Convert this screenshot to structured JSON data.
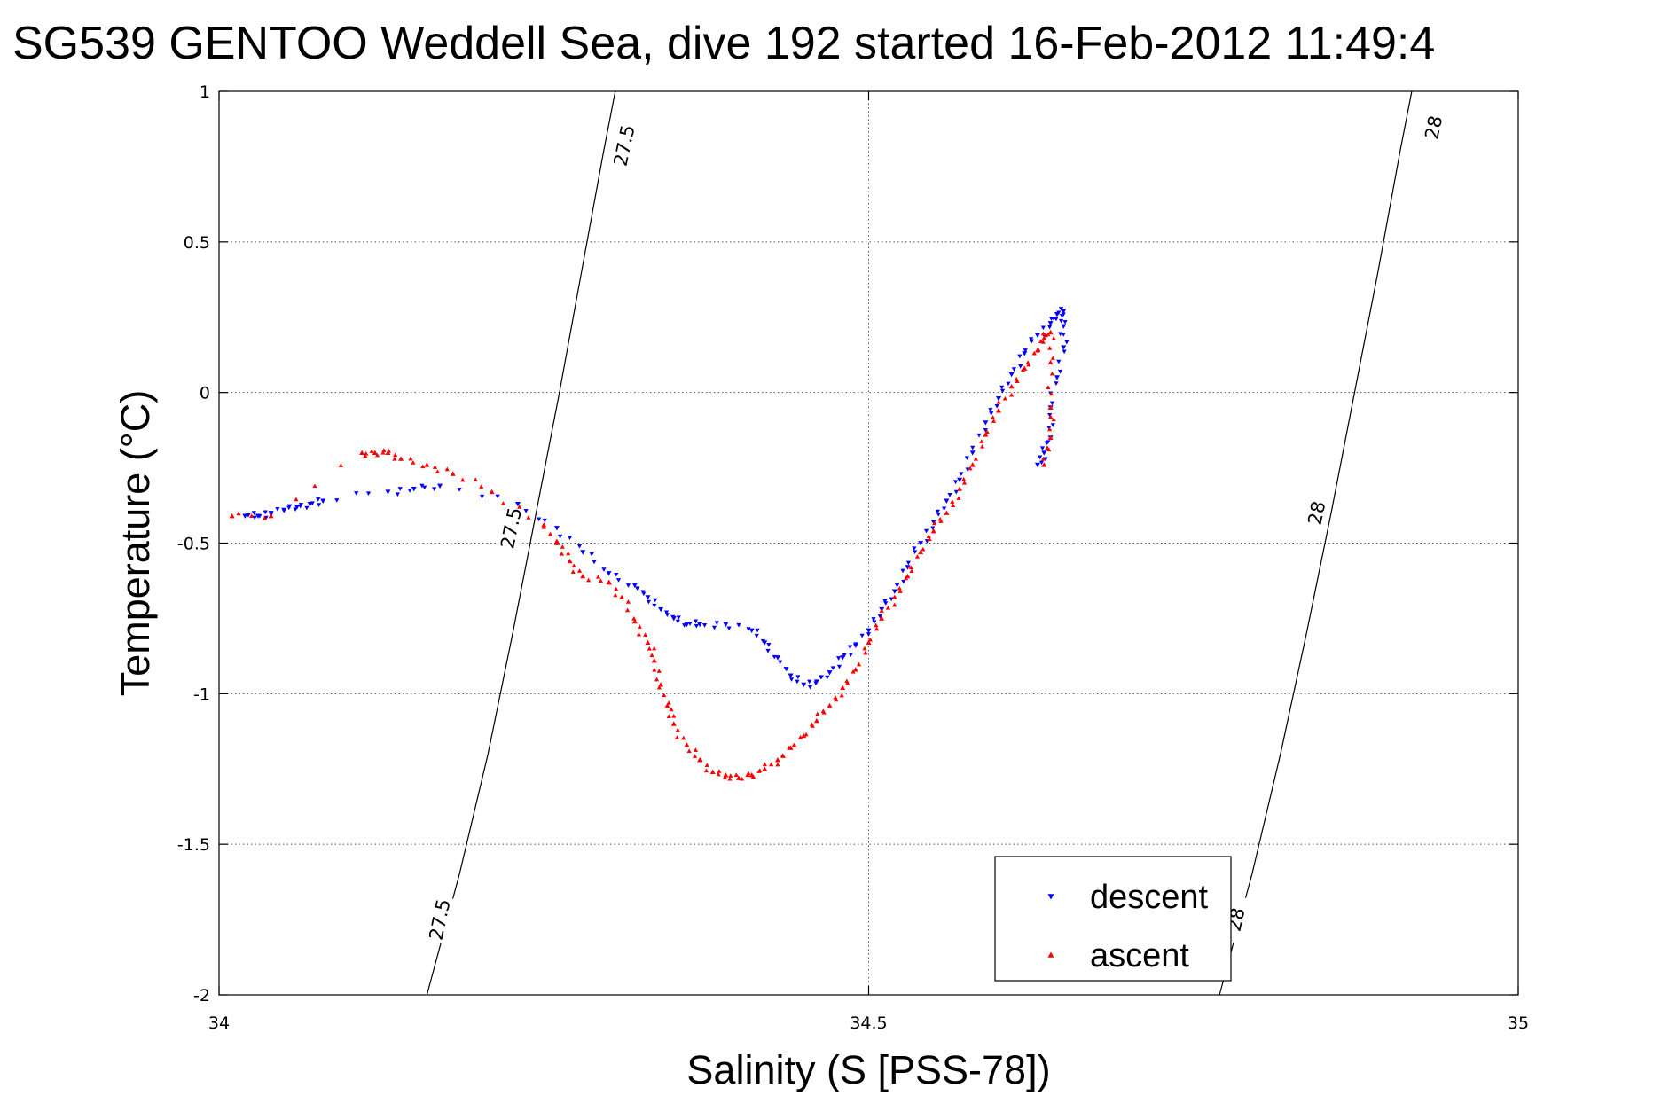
{
  "chart_data": {
    "type": "scatter",
    "title": "SG539 GENTOO Weddell Sea, dive 192 started 16-Feb-2012 11:49:4",
    "xlabel": "Salinity (S [PSS-78])",
    "ylabel": "Temperature (°C)",
    "xlim": [
      34,
      35
    ],
    "ylim": [
      -2,
      1
    ],
    "xticks": [
      34,
      34.5,
      35
    ],
    "xtick_labels": [
      "34",
      "34.5",
      "35"
    ],
    "yticks": [
      -2,
      -1.5,
      -1,
      -0.5,
      0,
      0.5,
      1
    ],
    "ytick_labels": [
      "-2",
      "-1.5",
      "-1",
      "-0.5",
      "0",
      "0.5",
      "1"
    ],
    "grid": true,
    "legend_position": "bottom-right",
    "contours": [
      {
        "label": "27.5",
        "points": [
          [
            34.16,
            -2.0
          ],
          [
            34.185,
            -1.6
          ],
          [
            34.207,
            -1.2
          ],
          [
            34.226,
            -0.8
          ],
          [
            34.244,
            -0.4
          ],
          [
            34.262,
            0.0
          ],
          [
            34.279,
            0.4
          ],
          [
            34.296,
            0.8
          ],
          [
            34.305,
            1.0
          ]
        ],
        "label_positions": [
          [
            34.17,
            -1.75
          ],
          [
            34.225,
            -0.45
          ],
          [
            34.312,
            0.82
          ]
        ]
      },
      {
        "label": "28",
        "points": [
          [
            34.77,
            -2.0
          ],
          [
            34.795,
            -1.6
          ],
          [
            34.817,
            -1.2
          ],
          [
            34.837,
            -0.8
          ],
          [
            34.856,
            -0.4
          ],
          [
            34.874,
            0.0
          ],
          [
            34.892,
            0.4
          ],
          [
            34.909,
            0.8
          ],
          [
            34.918,
            1.0
          ]
        ],
        "label_positions": [
          [
            34.783,
            -1.75
          ],
          [
            34.845,
            -0.4
          ],
          [
            34.935,
            0.88
          ]
        ]
      }
    ],
    "series": [
      {
        "name": "descent",
        "color": "#0000ff",
        "marker": "triangle-down",
        "x": [
          34.02,
          34.03,
          34.04,
          34.05,
          34.06,
          34.07,
          34.08,
          34.13,
          34.15,
          34.17,
          34.23,
          34.26,
          34.28,
          34.3,
          34.32,
          34.33,
          34.34,
          34.35,
          34.36,
          34.37,
          34.39,
          34.41,
          34.42,
          34.43,
          34.44,
          34.45,
          34.46,
          34.47,
          34.48,
          34.49,
          34.5,
          34.51,
          34.52,
          34.53,
          34.54,
          34.55,
          34.56,
          34.57,
          34.58,
          34.59,
          34.6,
          34.61,
          34.62,
          34.63,
          34.64,
          34.645,
          34.65,
          34.65,
          34.65,
          34.645,
          34.64,
          34.64,
          34.635,
          34.63
        ],
        "y": [
          -0.41,
          -0.41,
          -0.4,
          -0.39,
          -0.38,
          -0.37,
          -0.36,
          -0.33,
          -0.32,
          -0.31,
          -0.37,
          -0.45,
          -0.53,
          -0.6,
          -0.64,
          -0.68,
          -0.72,
          -0.75,
          -0.77,
          -0.77,
          -0.77,
          -0.79,
          -0.83,
          -0.88,
          -0.94,
          -0.97,
          -0.96,
          -0.93,
          -0.88,
          -0.84,
          -0.79,
          -0.72,
          -0.66,
          -0.58,
          -0.5,
          -0.43,
          -0.36,
          -0.29,
          -0.2,
          -0.1,
          -0.02,
          0.06,
          0.13,
          0.19,
          0.23,
          0.26,
          0.27,
          0.22,
          0.15,
          0.05,
          -0.05,
          -0.15,
          -0.2,
          -0.24
        ]
      },
      {
        "name": "ascent",
        "color": "#ff0000",
        "marker": "triangle-up",
        "x": [
          34.01,
          34.04,
          34.11,
          34.12,
          34.13,
          34.14,
          34.16,
          34.18,
          34.21,
          34.25,
          34.26,
          34.27,
          34.28,
          34.3,
          34.31,
          34.32,
          34.33,
          34.335,
          34.34,
          34.345,
          34.35,
          34.36,
          34.37,
          34.38,
          34.39,
          34.4,
          34.41,
          34.42,
          34.43,
          34.44,
          34.45,
          34.46,
          34.47,
          34.48,
          34.49,
          34.5,
          34.51,
          34.52,
          34.53,
          34.54,
          34.55,
          34.56,
          34.57,
          34.58,
          34.59,
          34.6,
          34.61,
          34.62,
          34.63,
          34.635,
          34.64,
          34.64,
          34.64,
          34.64,
          34.635
        ],
        "y": [
          -0.41,
          -0.41,
          -0.2,
          -0.2,
          -0.2,
          -0.22,
          -0.24,
          -0.27,
          -0.33,
          -0.44,
          -0.5,
          -0.56,
          -0.61,
          -0.63,
          -0.68,
          -0.76,
          -0.83,
          -0.89,
          -0.97,
          -1.04,
          -1.1,
          -1.17,
          -1.22,
          -1.26,
          -1.27,
          -1.28,
          -1.27,
          -1.25,
          -1.22,
          -1.18,
          -1.14,
          -1.09,
          -1.04,
          -0.98,
          -0.92,
          -0.83,
          -0.75,
          -0.68,
          -0.61,
          -0.53,
          -0.46,
          -0.4,
          -0.32,
          -0.24,
          -0.14,
          -0.06,
          0.02,
          0.08,
          0.14,
          0.18,
          0.2,
          0.1,
          -0.05,
          -0.15,
          -0.24
        ]
      }
    ]
  }
}
